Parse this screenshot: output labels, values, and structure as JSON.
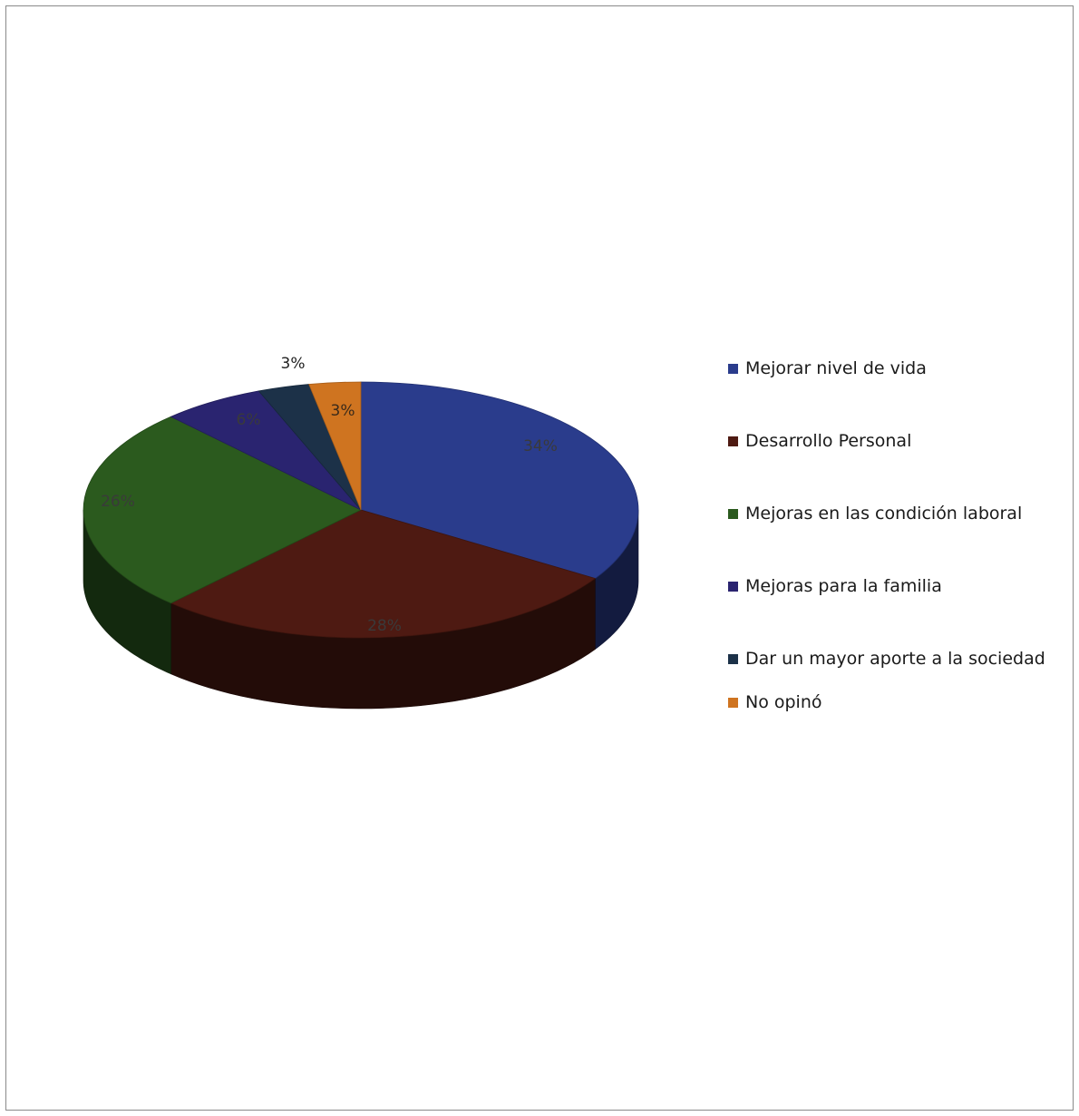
{
  "chart_data": {
    "type": "pie",
    "style": "3d",
    "categories": [
      "Mejorar nivel de vida",
      "Desarrollo Personal",
      "Mejoras en las condición laboral",
      "Mejoras para la familia",
      "Dar un mayor aporte a la sociedad",
      "No opinó"
    ],
    "values": [
      34,
      28,
      26,
      6,
      3,
      3
    ],
    "value_labels": [
      "34%",
      "28%",
      "26%",
      "6%",
      "3%",
      "3%"
    ],
    "colors": [
      "#2a3c8c",
      "#4e1a12",
      "#2b5a1e",
      "#2a2470",
      "#1c3148",
      "#cf7420"
    ],
    "legend_position": "right",
    "title": "",
    "xlabel": "",
    "ylabel": ""
  }
}
